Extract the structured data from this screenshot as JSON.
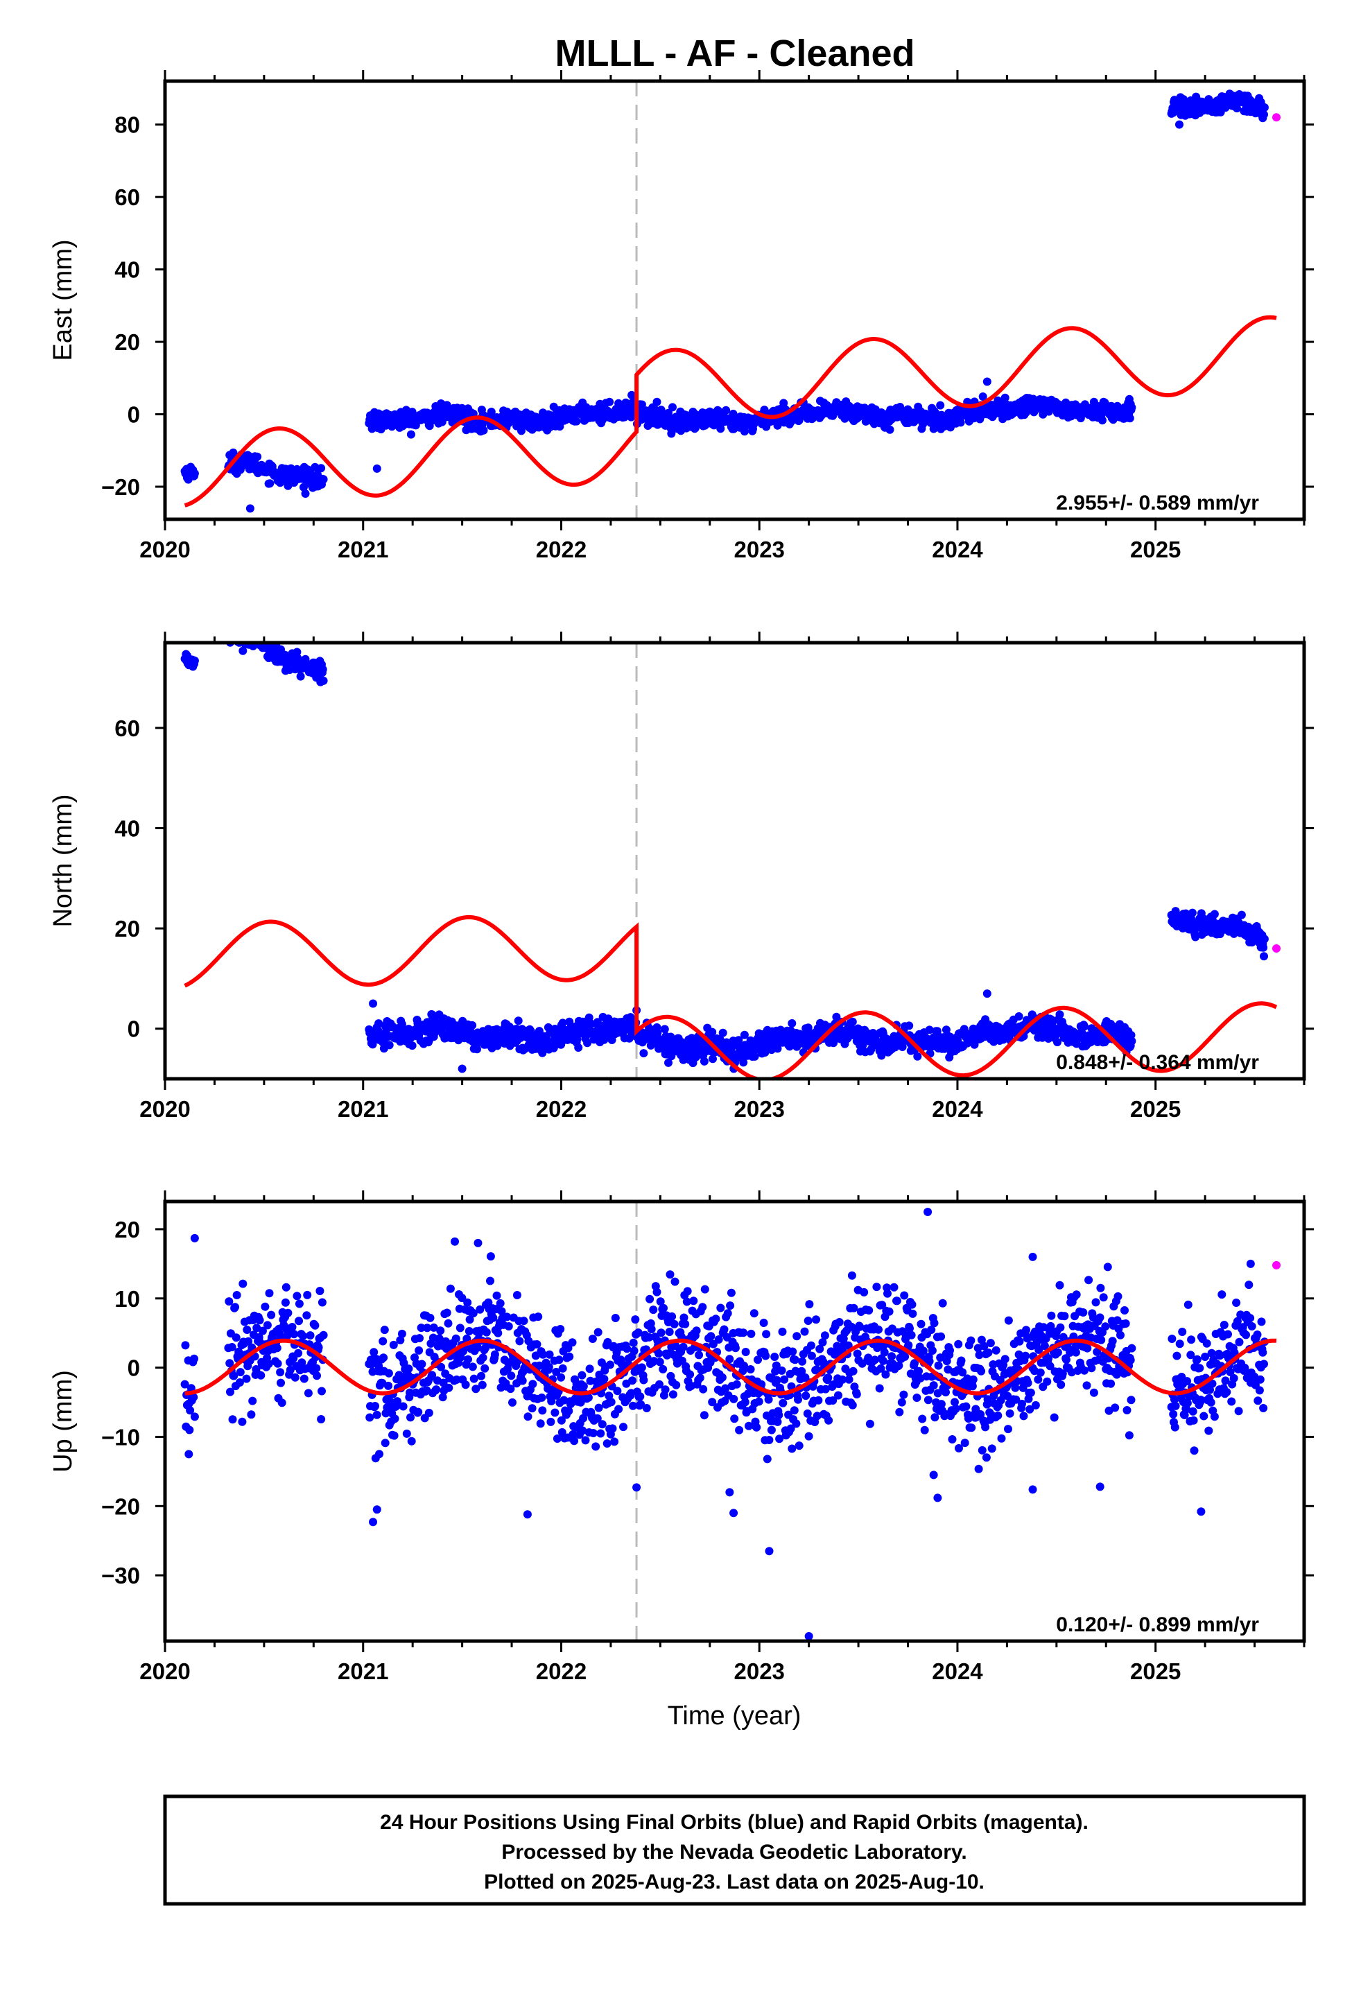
{
  "title": "MLLL  - AF - Cleaned",
  "xlabel": "Time (year)",
  "footer": {
    "line1": "24 Hour Positions Using Final Orbits (blue) and Rapid Orbits (magenta).",
    "line2": "Processed by the Nevada Geodetic Laboratory.",
    "line3": "Plotted on 2025-Aug-23. Last data on 2025-Aug-10."
  },
  "colors": {
    "final_orbits": "#0000ff",
    "rapid_orbits": "#ff00ff",
    "model": "#ff0000",
    "step_marker": "#bbbbbb"
  },
  "chart_data": [
    {
      "type": "scatter",
      "name": "east",
      "ylabel": "East (mm)",
      "rate_text": "2.955+/- 0.589 mm/yr",
      "xlim": [
        2020.0,
        2025.75
      ],
      "ylim": [
        -29,
        92
      ],
      "x_ticks": [
        "2020",
        "2021",
        "2022",
        "2023",
        "2024",
        "2025"
      ],
      "y_ticks": [
        {
          "value": 80,
          "label": "80"
        },
        {
          "value": 60,
          "label": "60"
        },
        {
          "value": 40,
          "label": "40"
        },
        {
          "value": 20,
          "label": "20"
        },
        {
          "value": 0,
          "label": "0"
        },
        {
          "value": -20,
          "label": "−20"
        }
      ],
      "step_epoch": 2022.38,
      "segments": [
        {
          "x": [
            2020.1,
            2020.15
          ],
          "level": -16.5,
          "trend": 0.0,
          "noise": 1.0
        },
        {
          "x": [
            2020.32,
            2020.8
          ],
          "level": -16.0,
          "trend": -7.0,
          "noise": 1.3
        },
        {
          "x": [
            2021.03,
            2022.38
          ],
          "level": -1.0,
          "trend": 2.0,
          "noise": 1.3
        },
        {
          "x": [
            2022.38,
            2024.88
          ],
          "level": 0.0,
          "trend": 1.3,
          "noise": 1.3
        },
        {
          "x": [
            2025.08,
            2025.55
          ],
          "level": 84.5,
          "trend": 0.0,
          "noise": 1.3
        }
      ],
      "outliers": [
        [
          2020.43,
          -26
        ],
        [
          2021.07,
          -15
        ],
        [
          2024.15,
          9
        ],
        [
          2025.12,
          80
        ]
      ],
      "rapid": [
        [
          2025.61,
          82
        ]
      ],
      "model": {
        "amplitude": 10,
        "phase": 2020.32,
        "step": 10,
        "offset_before": -8.5,
        "offset_after": 7.2,
        "slope": 3.0,
        "x": [
          2020.1,
          2025.61
        ]
      }
    },
    {
      "type": "scatter",
      "name": "north",
      "ylabel": "North (mm)",
      "rate_text": "0.848+/- 0.364 mm/yr",
      "xlim": [
        2020.0,
        2025.75
      ],
      "ylim": [
        -10,
        77
      ],
      "x_ticks": [
        "2020",
        "2021",
        "2022",
        "2023",
        "2024",
        "2025"
      ],
      "y_ticks": [
        {
          "value": 60,
          "label": "60"
        },
        {
          "value": 40,
          "label": "40"
        },
        {
          "value": 20,
          "label": "20"
        },
        {
          "value": 0,
          "label": "0"
        }
      ],
      "step_epoch": 2022.38,
      "segments": [
        {
          "x": [
            2020.1,
            2020.15
          ],
          "level": 73.0,
          "trend": 0.0,
          "noise": 0.8
        },
        {
          "x": [
            2020.32,
            2020.8
          ],
          "level": 75.0,
          "trend": -13.0,
          "noise": 1.2
        },
        {
          "x": [
            2021.03,
            2022.38
          ],
          "level": -1.0,
          "trend": 1.0,
          "noise": 1.2
        },
        {
          "x": [
            2022.38,
            2024.88
          ],
          "level": -2.0,
          "trend": 1.3,
          "noise": 1.2
        },
        {
          "x": [
            2025.08,
            2025.55
          ],
          "level": 19.5,
          "trend": -7.0,
          "noise": 1.0
        }
      ],
      "outliers": [
        [
          2021.05,
          5
        ],
        [
          2021.5,
          -8
        ],
        [
          2024.15,
          7
        ]
      ],
      "rapid": [
        [
          2025.61,
          16
        ]
      ],
      "model": {
        "amplitude": 6.5,
        "phase": 2020.28,
        "step": -22,
        "offset_before": 16.5,
        "offset_after": -4.3,
        "slope": 0.9,
        "x": [
          2020.1,
          2025.61
        ]
      }
    },
    {
      "type": "scatter",
      "name": "up",
      "ylabel": "Up (mm)",
      "rate_text": "0.120+/- 0.899 mm/yr",
      "xlim": [
        2020.0,
        2025.75
      ],
      "ylim": [
        -39.5,
        24
      ],
      "x_ticks": [
        "2020",
        "2021",
        "2022",
        "2023",
        "2024",
        "2025"
      ],
      "y_ticks": [
        {
          "value": 20,
          "label": "20"
        },
        {
          "value": 10,
          "label": "10"
        },
        {
          "value": 0,
          "label": "0"
        },
        {
          "value": -10,
          "label": "−10"
        },
        {
          "value": -20,
          "label": "−20"
        },
        {
          "value": -30,
          "label": "−30"
        }
      ],
      "step_epoch": 2022.38,
      "segments": [
        {
          "x": [
            2020.1,
            2020.15
          ],
          "level": 0.0,
          "trend": 0.0,
          "noise": 4.0,
          "seasonal": true
        },
        {
          "x": [
            2020.32,
            2020.8
          ],
          "level": 0.0,
          "trend": 0.0,
          "noise": 4.0,
          "seasonal": true
        },
        {
          "x": [
            2021.03,
            2022.38
          ],
          "level": 0.0,
          "trend": 0.0,
          "noise": 4.0,
          "seasonal": true
        },
        {
          "x": [
            2022.38,
            2024.88
          ],
          "level": 0.0,
          "trend": 0.0,
          "noise": 4.0,
          "seasonal": true
        },
        {
          "x": [
            2025.08,
            2025.55
          ],
          "level": 0.0,
          "trend": 0.0,
          "noise": 4.0,
          "seasonal": true
        }
      ],
      "outliers": [
        [
          2020.15,
          18.7
        ],
        [
          2020.12,
          -12.5
        ],
        [
          2021.05,
          -22.3
        ],
        [
          2021.07,
          -20.5
        ],
        [
          2021.58,
          18
        ],
        [
          2021.83,
          -21.2
        ],
        [
          2022.38,
          -17.3
        ],
        [
          2022.85,
          -18
        ],
        [
          2022.87,
          -21
        ],
        [
          2023.05,
          -26.5
        ],
        [
          2023.25,
          -38.8
        ],
        [
          2023.85,
          22.5
        ],
        [
          2023.88,
          -15.5
        ],
        [
          2023.9,
          -18.8
        ],
        [
          2024.38,
          16
        ],
        [
          2024.38,
          -17.6
        ],
        [
          2024.72,
          -17.2
        ],
        [
          2025.23,
          -20.8
        ],
        [
          2025.48,
          15
        ]
      ],
      "rapid": [
        [
          2025.61,
          14.8
        ]
      ],
      "model": {
        "amplitude": 3.8,
        "phase": 2020.35,
        "step": 0,
        "offset_before": 0.1,
        "offset_after": 0.1,
        "slope": 0.0,
        "x": [
          2020.1,
          2025.61
        ]
      }
    }
  ]
}
